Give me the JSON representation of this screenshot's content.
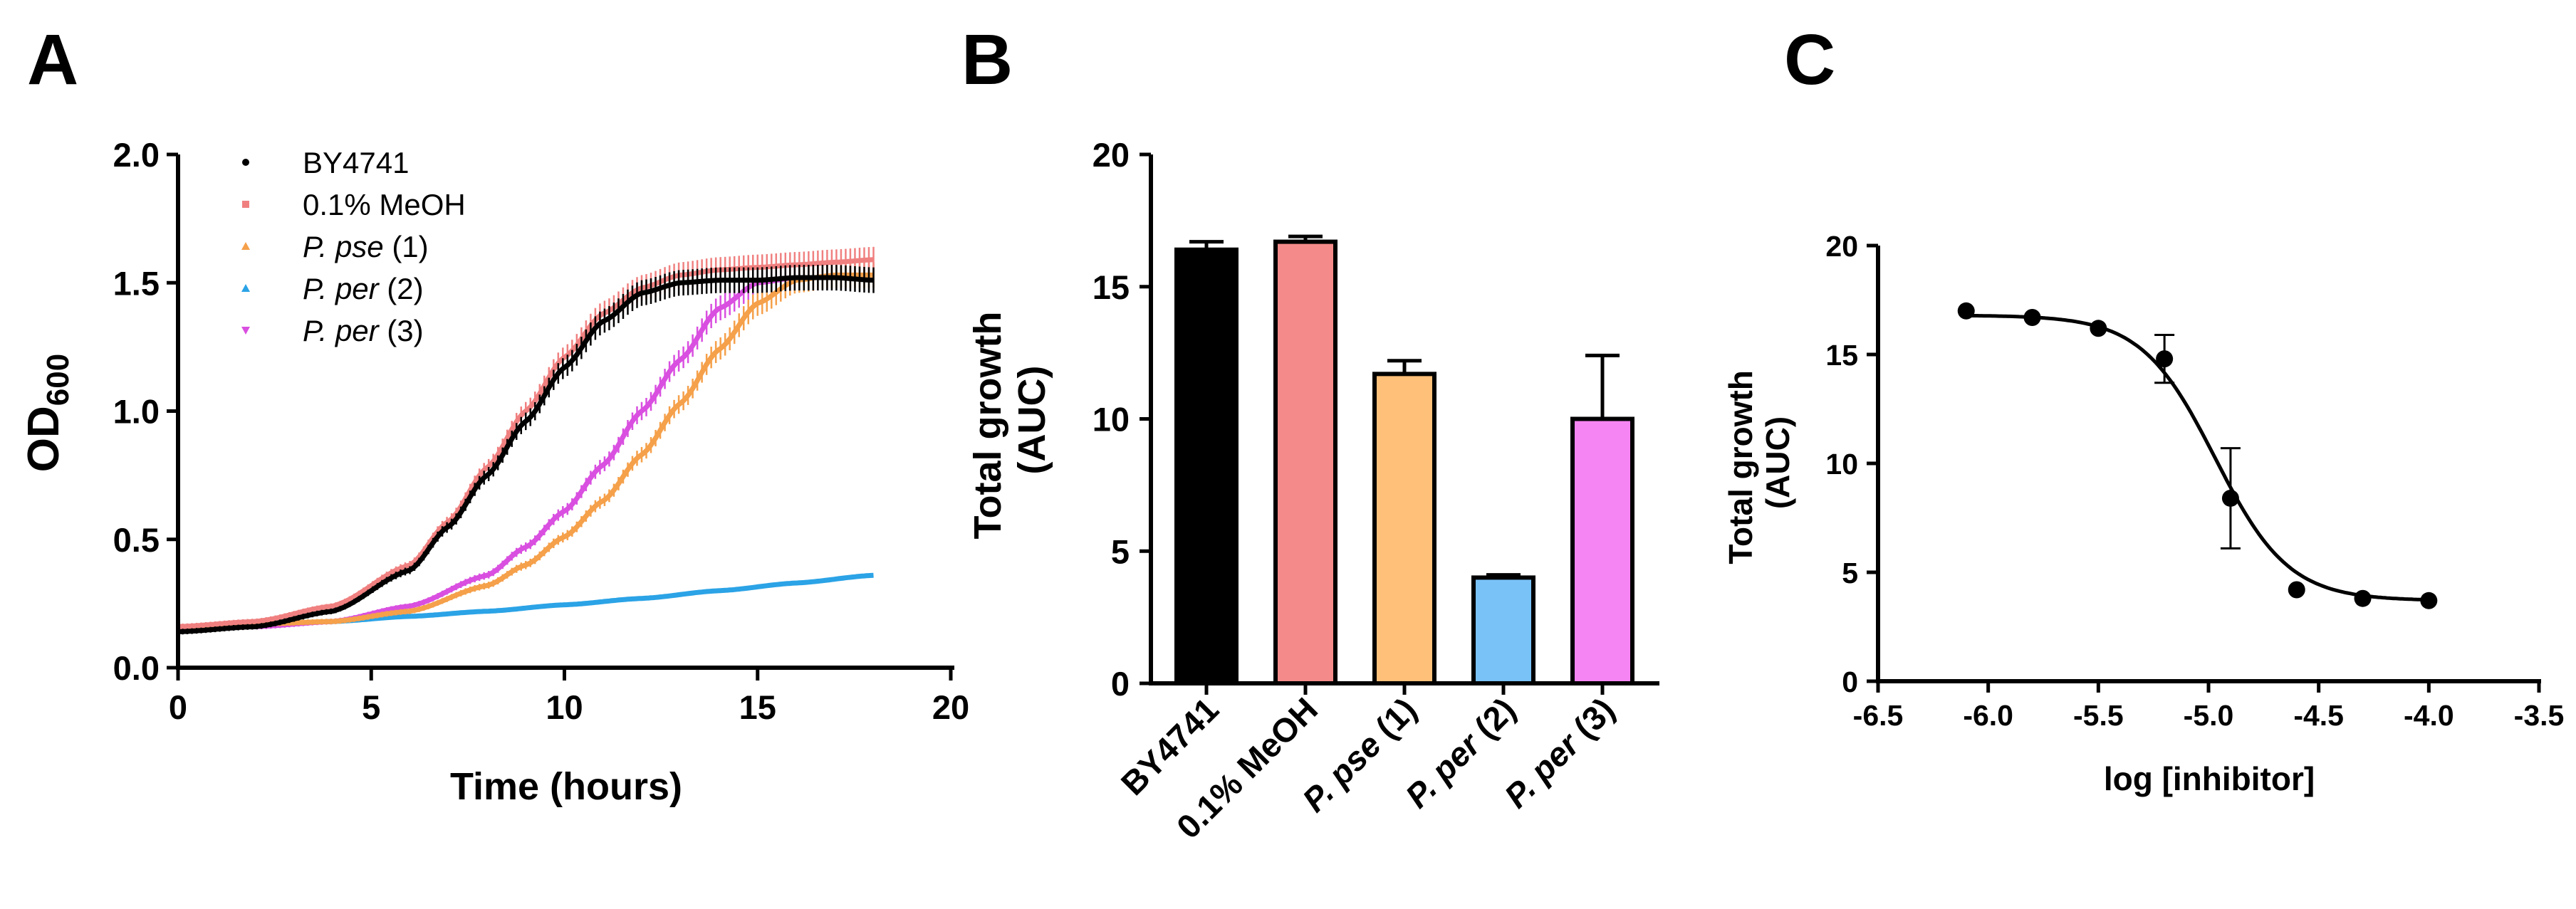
{
  "panels": {
    "A": {
      "letter": "A",
      "xlabel": "Time (hours)",
      "ylabel_main": "OD",
      "ylabel_sub": "600"
    },
    "B": {
      "letter": "B"
    },
    "C": {
      "letter": "C"
    }
  },
  "legend": [
    {
      "label": "BY4741",
      "italic": "",
      "rest": "BY4741",
      "color": "#000000",
      "marker": "dot"
    },
    {
      "label": "0.1% MeOH",
      "italic": "",
      "rest": "0.1%  MeOH",
      "color": "#F08080",
      "marker": "square"
    },
    {
      "label": "P. pse (1)",
      "italic": "P. pse",
      "rest": " (1)",
      "color": "#F5A04A",
      "marker": "triangle-up"
    },
    {
      "label": "P. per (2)",
      "italic": "P. per",
      "rest": " (2)",
      "color": "#2BA3E6",
      "marker": "triangle-up"
    },
    {
      "label": "P. per (3)",
      "italic": "P. per",
      "rest": " (3)",
      "color": "#D94FE0",
      "marker": "triangle-down"
    }
  ],
  "colors": {
    "black": "#000000",
    "meoh": "#F48A8A",
    "pse1": "#FFC079",
    "per2": "#79C2F7",
    "per3": "#F685F4"
  },
  "chart_data": [
    {
      "id": "A",
      "type": "line",
      "title": "",
      "xlabel": "Time (hours)",
      "ylabel": "OD600",
      "xlim": [
        0,
        20
      ],
      "ylim": [
        0,
        2.0
      ],
      "xticks": [
        0,
        5,
        10,
        15,
        20
      ],
      "xtick_labels": [
        "0",
        "5",
        "10",
        "15",
        "20"
      ],
      "yticks": [
        0.0,
        0.5,
        1.0,
        1.5,
        2.0
      ],
      "ytick_labels": [
        "0.0",
        "0.5",
        "1.0",
        "1.5",
        "2.0"
      ],
      "series": [
        {
          "name": "BY4741",
          "x": [
            0,
            2,
            4,
            6,
            7,
            8,
            9,
            10,
            11,
            12,
            13,
            14,
            15,
            16,
            17,
            18
          ],
          "y": [
            0.14,
            0.16,
            0.22,
            0.38,
            0.55,
            0.75,
            0.96,
            1.17,
            1.35,
            1.46,
            1.5,
            1.51,
            1.51,
            1.52,
            1.52,
            1.51
          ]
        },
        {
          "name": "0.1% MeOH",
          "x": [
            0,
            2,
            4,
            6,
            7,
            8,
            9,
            10,
            11,
            12,
            13,
            14,
            15,
            16,
            17,
            18
          ],
          "y": [
            0.16,
            0.18,
            0.24,
            0.4,
            0.57,
            0.78,
            1.0,
            1.21,
            1.38,
            1.48,
            1.53,
            1.55,
            1.56,
            1.57,
            1.58,
            1.59
          ]
        },
        {
          "name": "P. pse (1)",
          "x": [
            0,
            2,
            4,
            6,
            8,
            9,
            10,
            11,
            12,
            13,
            14,
            15,
            16,
            17,
            18
          ],
          "y": [
            0.16,
            0.17,
            0.18,
            0.22,
            0.32,
            0.4,
            0.51,
            0.65,
            0.83,
            1.03,
            1.24,
            1.42,
            1.51,
            1.53,
            1.53
          ]
        },
        {
          "name": "P. per (2)",
          "x": [
            0,
            2,
            4,
            6,
            8,
            10,
            12,
            14,
            16,
            18
          ],
          "y": [
            0.16,
            0.165,
            0.18,
            0.2,
            0.22,
            0.245,
            0.27,
            0.3,
            0.33,
            0.36
          ]
        },
        {
          "name": "P. per (3)",
          "x": [
            0,
            2,
            4,
            6,
            8,
            9,
            10,
            11,
            12,
            13,
            14,
            15,
            16
          ],
          "y": [
            0.15,
            0.16,
            0.18,
            0.24,
            0.36,
            0.47,
            0.61,
            0.79,
            1.0,
            1.2,
            1.4,
            1.5,
            1.52
          ]
        }
      ]
    },
    {
      "id": "B",
      "type": "bar",
      "title": "",
      "xlabel": "",
      "ylabel_line1": "Total growth",
      "ylabel_line2": "(AUC)",
      "ylim": [
        0,
        20
      ],
      "yticks": [
        0,
        5,
        10,
        15,
        20
      ],
      "ytick_labels": [
        "0",
        "5",
        "10",
        "15",
        "20"
      ],
      "categories": [
        {
          "label": "BY4741",
          "italic": "",
          "rest": "BY4741"
        },
        {
          "label": "0.1% MeOH",
          "italic": "",
          "rest": "0.1% MeOH"
        },
        {
          "label": "P. pse (1)",
          "italic": "P. pse",
          "rest": " (1)"
        },
        {
          "label": "P. per (2)",
          "italic": "P. per",
          "rest": " (2)"
        },
        {
          "label": "P. per (3)",
          "italic": "P. per",
          "rest": " (3)"
        }
      ],
      "values": [
        16.4,
        16.7,
        11.7,
        4.0,
        10.0
      ],
      "errors": [
        0.3,
        0.2,
        0.5,
        0.1,
        2.4
      ]
    },
    {
      "id": "C",
      "type": "scatter",
      "title": "",
      "xlabel": "log [inhibitor]",
      "ylabel_line1": "Total growth",
      "ylabel_line2": "(AUC)",
      "xlim": [
        -6.5,
        -3.5
      ],
      "ylim": [
        0,
        20
      ],
      "xticks": [
        -6.5,
        -6.0,
        -5.5,
        -5.0,
        -4.5,
        -4.0,
        -3.5
      ],
      "xtick_labels": [
        "-6.5",
        "-6.0",
        "-5.5",
        "-5.0",
        "-4.5",
        "-4.0",
        "-3.5"
      ],
      "yticks": [
        0,
        5,
        10,
        15,
        20
      ],
      "ytick_labels": [
        "0",
        "5",
        "10",
        "15",
        "20"
      ],
      "points": {
        "x": [
          -6.1,
          -5.8,
          -5.5,
          -5.2,
          -4.9,
          -4.6,
          -4.3,
          -4.0
        ],
        "y": [
          17.0,
          16.7,
          16.2,
          14.8,
          8.4,
          4.2,
          3.8,
          3.7
        ],
        "err": [
          0,
          0,
          0,
          1.1,
          2.3,
          0,
          0,
          0
        ]
      },
      "fit": {
        "model": "4PL",
        "top": 16.8,
        "bottom": 3.7,
        "log_ic50": -4.97,
        "hill": 2.6
      }
    }
  ]
}
